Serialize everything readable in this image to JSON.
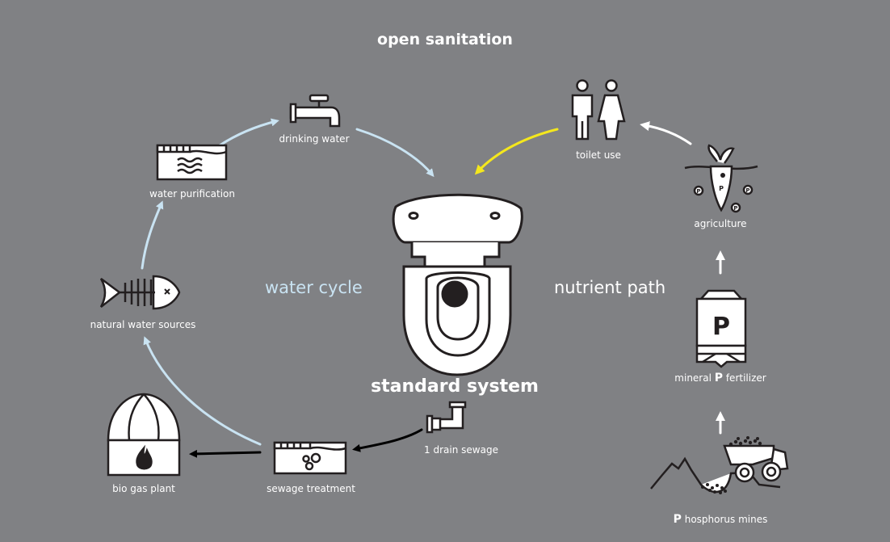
{
  "title": "open sanitation",
  "center": {
    "label": "standard system"
  },
  "sections": {
    "left": "water cycle",
    "right": "nutrient path"
  },
  "nodes": {
    "drinking_water": "drinking water",
    "water_purification": "water purification",
    "natural_water_sources": "natural water sources",
    "bio_gas_plant": "bio gas plant",
    "sewage_treatment": "sewage treatment",
    "drain_sewage": "1 drain sewage",
    "toilet_use": "toilet use",
    "agriculture": "agriculture",
    "mineral_fertilizer": {
      "initial": "P",
      "rest": " fertilizer",
      "prefix": "mineral "
    },
    "phosphorus_mines": {
      "initial": "P",
      "rest": " hosphorus mines"
    }
  },
  "icon_letters": {
    "silo": "P",
    "nutrient_marker": "P"
  },
  "colors": {
    "background": "#808184",
    "water_arrow": "#c9e3f2",
    "nutrient_arrow": "#ffffff",
    "sewage_arrow": "#000000",
    "toilet_arrow": "#f4e71d",
    "icon_fill": "#ffffff",
    "icon_stroke": "#231f20"
  }
}
